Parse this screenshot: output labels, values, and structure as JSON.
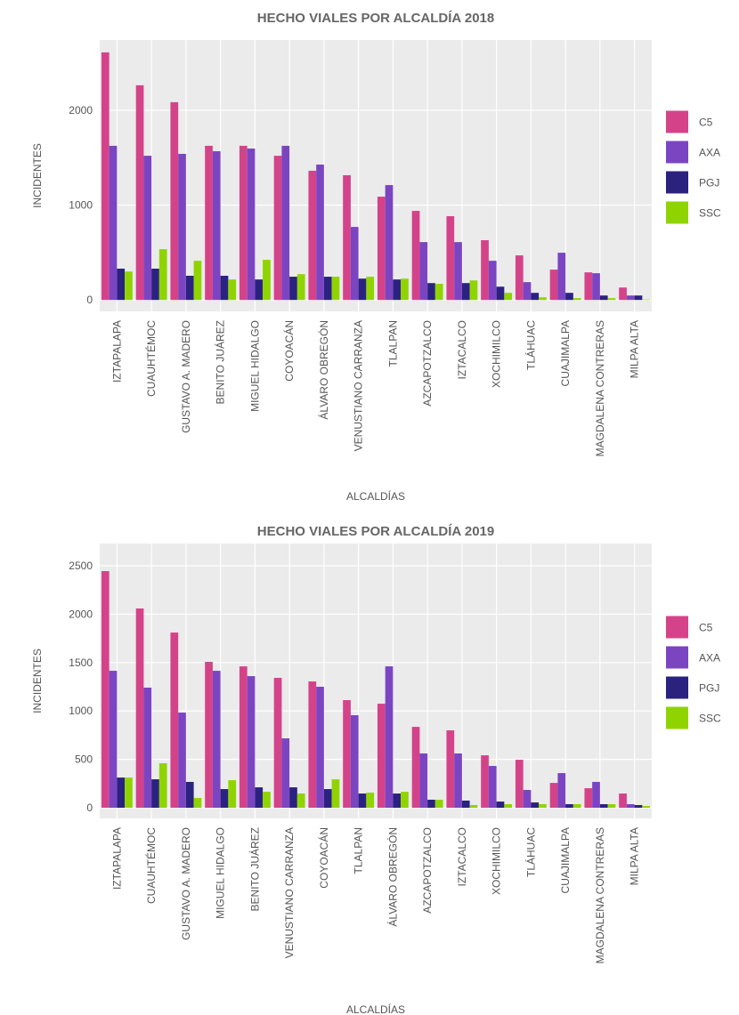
{
  "chart_data": [
    {
      "type": "bar",
      "title": "HECHO VIALES POR ALCALDÍA 2018",
      "x_label": "ALCALDÍAS",
      "y_label": "INCIDENTES",
      "categories": [
        "IZTAPALAPA",
        "CUAUHTÉMOC",
        "GUSTAVO A. MADERO",
        "BENITO JUÁREZ",
        "MIGUEL HIDALGO",
        "COYOACÁN",
        "ÁLVARO OBREGÓN",
        "VENUSTIANO CARRANZA",
        "TLALPAN",
        "AZCAPOTZALCO",
        "IZTACALCO",
        "XOCHIMILCO",
        "TLÁHUAC",
        "CUAJIMALPA",
        "MAGDALENA CONTRERAS",
        "MILPA ALTA"
      ],
      "series": [
        {
          "name": "C5",
          "color": "#d4438a",
          "values": [
            2610,
            2263,
            2085,
            1625,
            1625,
            1520,
            1362,
            1315,
            1089,
            939,
            883,
            630,
            470,
            320,
            291,
            131
          ]
        },
        {
          "name": "AXA",
          "color": "#7b45c2",
          "values": [
            1625,
            1520,
            1540,
            1568,
            1596,
            1625,
            1427,
            770,
            1211,
            610,
            610,
            413,
            188,
            498,
            282,
            47
          ]
        },
        {
          "name": "PGJ",
          "color": "#2b2280",
          "values": [
            330,
            330,
            255,
            255,
            216,
            245,
            245,
            225,
            216,
            178,
            178,
            140,
            75,
            75,
            47,
            47
          ]
        },
        {
          "name": "SSC",
          "color": "#8fd400",
          "values": [
            300,
            535,
            413,
            216,
            423,
            272,
            245,
            245,
            225,
            170,
            206,
            75,
            28,
            19,
            19,
            5
          ]
        }
      ],
      "ylim": [
        -120,
        2740
      ],
      "yticks": [
        0,
        1000,
        2000
      ],
      "grid": true
    },
    {
      "type": "bar",
      "title": "HECHO VIALES POR ALCALDÍA 2019",
      "x_label": "ALCALDÍAS",
      "y_label": "INCIDENTES",
      "categories": [
        "IZTAPALAPA",
        "CUAUHTÉMOC",
        "GUSTAVO A. MADERO",
        "MIGUEL HIDALGO",
        "BENITO JUÁREZ",
        "VENUSTIANO CARRANZA",
        "COYOACÁN",
        "TLALPAN",
        "ÁLVARO OBREGÓN",
        "AZCAPOTZALCO",
        "IZTACALCO",
        "XOCHIMILCO",
        "TLÁHUAC",
        "CUAJIMALPA",
        "MAGDALENA CONTRERAS",
        "MILPA ALTA"
      ],
      "series": [
        {
          "name": "C5",
          "color": "#d4438a",
          "values": [
            2445,
            2059,
            1810,
            1507,
            1461,
            1342,
            1305,
            1112,
            1075,
            836,
            800,
            542,
            496,
            257,
            202,
            147
          ]
        },
        {
          "name": "AXA",
          "color": "#7b45c2",
          "values": [
            1415,
            1241,
            983,
            1415,
            1360,
            717,
            1250,
            956,
            1461,
            561,
            561,
            432,
            184,
            358,
            267,
            37
          ]
        },
        {
          "name": "PGJ",
          "color": "#2b2280",
          "values": [
            312,
            294,
            267,
            193,
            211,
            211,
            193,
            147,
            147,
            83,
            74,
            64,
            55,
            37,
            37,
            28
          ]
        },
        {
          "name": "SSC",
          "color": "#8fd400",
          "values": [
            312,
            460,
            101,
            285,
            165,
            147,
            294,
            156,
            165,
            83,
            28,
            37,
            37,
            37,
            37,
            18
          ]
        }
      ],
      "ylim": [
        -110,
        2730
      ],
      "yticks": [
        0,
        500,
        1000,
        1500,
        2000,
        2500
      ],
      "grid": true
    }
  ]
}
